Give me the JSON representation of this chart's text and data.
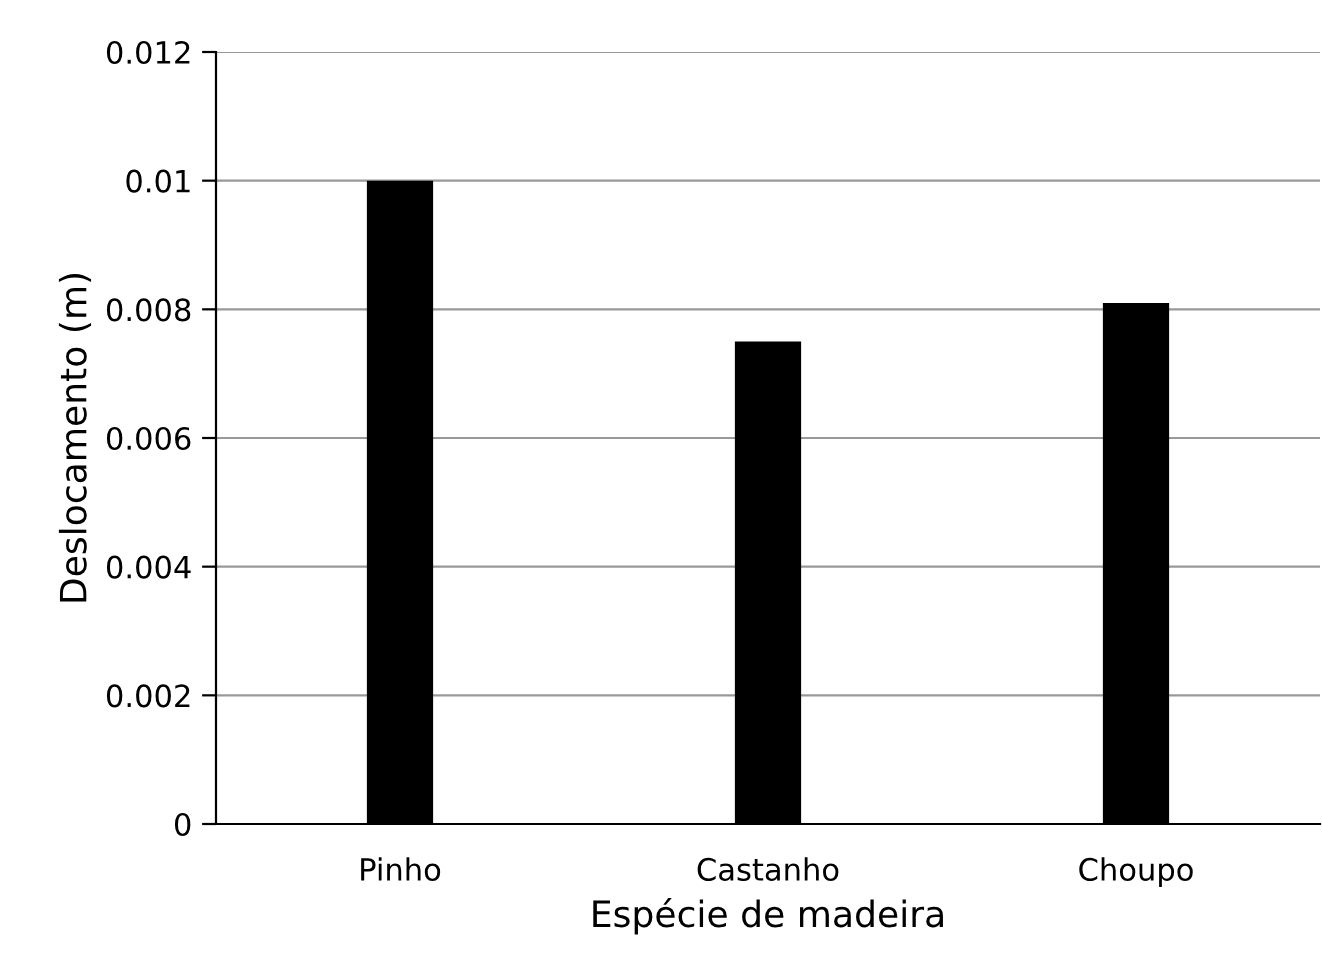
{
  "chart_data": {
    "type": "bar",
    "xlabel": "Espécie de madeira",
    "ylabel": "Deslocamento (m)",
    "categories": [
      "Pinho",
      "Castanho",
      "Choupo"
    ],
    "values": [
      0.01,
      0.0075,
      0.0081
    ],
    "color": "#000000",
    "ylim": [
      0,
      0.012
    ],
    "yticks": [
      {
        "value": 0,
        "label": "0"
      },
      0.002,
      0.004,
      0.006,
      0.008,
      0.01,
      0.012
    ],
    "grid": "y"
  }
}
